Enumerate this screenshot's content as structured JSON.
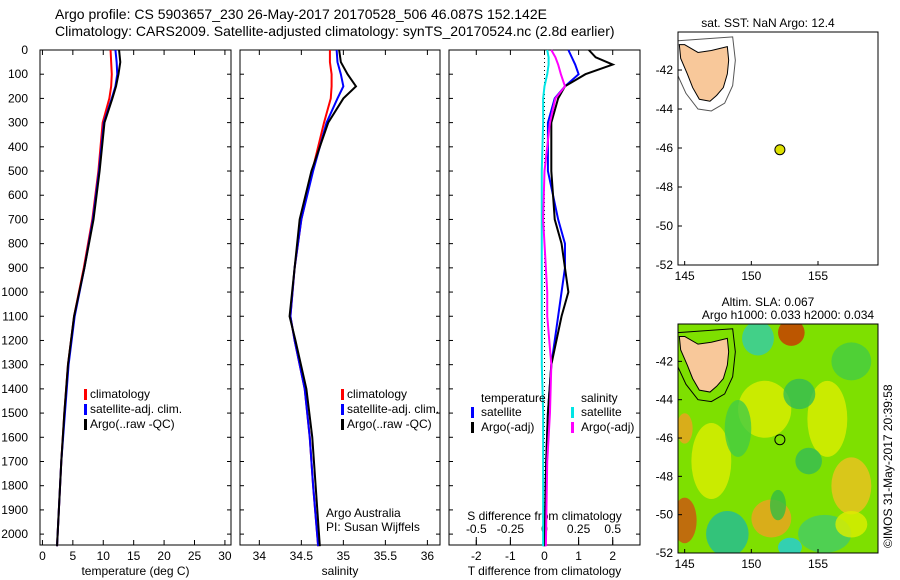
{
  "title_line1": "Argo profile: CS 5903657_230 26-May-2017 20170528_506 46.087S 152.142E",
  "title_line2": "Climatology: CARS2009. Satellite-adjusted climatology: synTS_20170524.nc (2.8d earlier)",
  "credit": "©IMOS 31-May-2017 20:39:58",
  "chart_data": [
    {
      "type": "line",
      "name": "temperature",
      "xlabel": "temperature (deg C)",
      "ylabel": "depth",
      "xlim": [
        -0.4,
        31
      ],
      "ylim": [
        2045,
        0
      ],
      "xticks": [
        0,
        5,
        10,
        15,
        20,
        25,
        30
      ],
      "yticks": [
        0,
        100,
        200,
        300,
        400,
        500,
        600,
        700,
        800,
        900,
        1000,
        1100,
        1200,
        1300,
        1400,
        1500,
        1600,
        1700,
        1800,
        1900,
        2000
      ],
      "legend": [
        "climatology",
        "satellite-adj. clim.",
        "Argo(..raw -QC)"
      ],
      "depth": [
        0,
        50,
        100,
        150,
        200,
        300,
        500,
        700,
        900,
        1100,
        1300,
        1500,
        1700,
        1900,
        2050
      ],
      "series": [
        {
          "name": "climatology",
          "color": "#ff0000",
          "values": [
            11.2,
            11.3,
            11.4,
            11.3,
            11.0,
            9.9,
            9.2,
            8.2,
            6.8,
            5.2,
            4.2,
            3.6,
            3.1,
            2.7,
            2.4
          ]
        },
        {
          "name": "satellite-adj. clim.",
          "color": "#0000ff",
          "values": [
            12.0,
            12.2,
            12.3,
            12.0,
            11.4,
            10.1,
            9.3,
            8.3,
            6.9,
            5.3,
            4.3,
            3.7,
            3.1,
            2.7,
            2.4
          ]
        },
        {
          "name": "Argo(..raw -QC)",
          "color": "#000000",
          "values": [
            12.6,
            12.8,
            12.5,
            12.1,
            11.5,
            10.2,
            9.4,
            8.4,
            6.9,
            5.2,
            4.2,
            3.6,
            3.1,
            2.7,
            2.4
          ]
        }
      ]
    },
    {
      "type": "line",
      "name": "salinity",
      "xlabel": "salinity",
      "xlim": [
        33.77,
        36.15
      ],
      "ylim": [
        2045,
        0
      ],
      "xticks": [
        34,
        34.5,
        35,
        35.5,
        36
      ],
      "legend": [
        "climatology",
        "satellite-adj. clim.",
        "Argo(..raw -QC)"
      ],
      "annotation": [
        "Argo Australia",
        "PI: Susan Wijffels"
      ],
      "depth": [
        0,
        50,
        100,
        150,
        200,
        300,
        500,
        700,
        900,
        1100,
        1200,
        1400,
        1600,
        1800,
        2050
      ],
      "series": [
        {
          "name": "climatology",
          "color": "#ff0000",
          "values": [
            34.84,
            34.84,
            34.86,
            34.86,
            34.85,
            34.77,
            34.63,
            34.5,
            34.42,
            34.37,
            34.42,
            34.54,
            34.6,
            34.64,
            34.7
          ]
        },
        {
          "name": "satellite-adj. clim.",
          "color": "#0000ff",
          "values": [
            34.92,
            34.93,
            34.97,
            35.0,
            34.93,
            34.8,
            34.64,
            34.5,
            34.42,
            34.37,
            34.42,
            34.54,
            34.6,
            34.64,
            34.7
          ]
        },
        {
          "name": "Argo(..raw -QC)",
          "color": "#000000",
          "values": [
            34.95,
            34.97,
            35.05,
            35.15,
            35.0,
            34.82,
            34.62,
            34.48,
            34.42,
            34.36,
            34.43,
            34.56,
            34.63,
            34.67,
            34.72
          ]
        }
      ]
    },
    {
      "type": "line",
      "name": "difference",
      "xlabel": "T difference from climatology",
      "x2label": "S difference from climatology",
      "xlim": [
        -2.8,
        2.8
      ],
      "x2lim": [
        -0.7,
        0.7
      ],
      "ylim": [
        2045,
        0
      ],
      "xticks": [
        -2,
        -1,
        0,
        1,
        2
      ],
      "x2ticks": [
        -0.5,
        -0.25,
        0,
        0.25,
        0.5
      ],
      "legend_headers": [
        "temperature",
        "salinity"
      ],
      "legend": [
        "satellite",
        "Argo(-adj)",
        "satellite",
        "Argo(-adj)"
      ],
      "depth": [
        0,
        30,
        60,
        100,
        150,
        200,
        300,
        500,
        700,
        800,
        900,
        1000,
        1100,
        1300,
        1500,
        1700,
        2050
      ],
      "series": [
        {
          "name": "T satellite",
          "axis": "T",
          "color": "#0000ff",
          "values": [
            0.7,
            0.8,
            0.9,
            1.0,
            0.6,
            0.3,
            0.1,
            0.1,
            0.4,
            0.6,
            0.6,
            0.5,
            0.4,
            0.2,
            0.1,
            0.05,
            0.0
          ]
        },
        {
          "name": "T Argo(-adj)",
          "axis": "T",
          "color": "#000000",
          "values": [
            1.3,
            1.5,
            2.0,
            1.2,
            0.6,
            0.4,
            0.2,
            0.2,
            0.3,
            0.5,
            0.6,
            0.7,
            0.5,
            0.2,
            0.1,
            0.05,
            0.0
          ]
        },
        {
          "name": "S satellite",
          "axis": "S",
          "color": "#00e5e5",
          "values": [
            0.02,
            0.03,
            0.03,
            0.02,
            0.0,
            -0.01,
            -0.01,
            -0.02,
            -0.02,
            -0.02,
            -0.02,
            -0.02,
            -0.02,
            -0.02,
            -0.01,
            -0.01,
            -0.01
          ]
        },
        {
          "name": "S Argo(-adj)",
          "axis": "S",
          "color": "#ff00ff",
          "values": [
            0.05,
            0.08,
            0.1,
            0.12,
            0.15,
            0.08,
            0.04,
            0.0,
            -0.01,
            0.0,
            0.01,
            0.02,
            0.02,
            0.05,
            0.04,
            0.02,
            0.01
          ]
        }
      ]
    },
    {
      "type": "scatter",
      "name": "sst-map",
      "title": "sat. SST: NaN Argo: 12.4",
      "xlim": [
        144.5,
        159.5
      ],
      "ylim": [
        -52,
        -40.05
      ],
      "xticks": [
        145,
        150,
        155
      ],
      "yticks": [
        -42,
        -44,
        -46,
        -48,
        -50,
        -52
      ],
      "points": [
        {
          "lon": 152.142,
          "lat": -46.087
        }
      ]
    },
    {
      "type": "heatmap",
      "name": "sla-map",
      "title": [
        "Altim. SLA: 0.067",
        "Argo h1000: 0.033 h2000: 0.034"
      ],
      "xlim": [
        144.5,
        159.5
      ],
      "ylim": [
        -52,
        -40.05
      ],
      "xticks": [
        145,
        150,
        155
      ],
      "yticks": [
        -42,
        -44,
        -46,
        -48,
        -50,
        -52
      ],
      "points": [
        {
          "lon": 152.142,
          "lat": -46.087
        }
      ]
    }
  ]
}
